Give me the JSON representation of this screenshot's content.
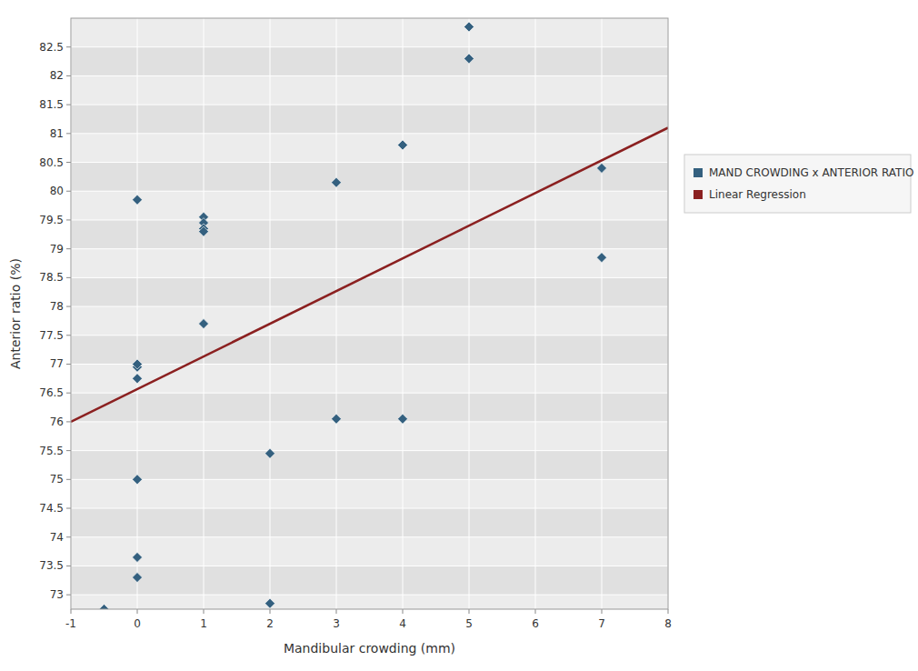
{
  "chart_data": {
    "type": "scatter",
    "x_label": "Mandibular crowding (mm)",
    "y_label": "Anterior ratio (%)",
    "xlim": [
      -1,
      8
    ],
    "ylim": [
      72.75,
      83.0
    ],
    "xticks": [
      -1,
      0,
      1,
      2,
      3,
      4,
      5,
      6,
      7,
      8
    ],
    "yticks": [
      73,
      73.5,
      74,
      74.5,
      75,
      75.5,
      76,
      76.5,
      77,
      77.5,
      78,
      78.5,
      79,
      79.5,
      80,
      80.5,
      81,
      81.5,
      82,
      82.5
    ],
    "grid": true,
    "legend": "right",
    "series": [
      {
        "name": "MAND CROWDING x ANTERIOR RATIO",
        "type": "scatter",
        "color": "#34607F",
        "marker": "diamond",
        "x": [
          -0.5,
          0,
          0,
          0,
          0,
          0,
          0,
          0,
          1,
          1,
          1,
          1,
          1,
          2,
          2,
          3,
          3,
          4,
          4,
          5,
          5,
          7,
          7
        ],
        "values": [
          72.75,
          79.85,
          76.95,
          77.0,
          76.75,
          75.0,
          73.65,
          73.3,
          79.55,
          79.45,
          79.35,
          79.3,
          77.7,
          75.45,
          72.85,
          80.15,
          76.05,
          80.8,
          76.05,
          82.85,
          82.3,
          80.4,
          78.85
        ]
      },
      {
        "name": "Linear Regression",
        "type": "line",
        "color": "#8B2020",
        "x": [
          -1,
          8
        ],
        "values": [
          76.0,
          81.1
        ]
      }
    ]
  }
}
